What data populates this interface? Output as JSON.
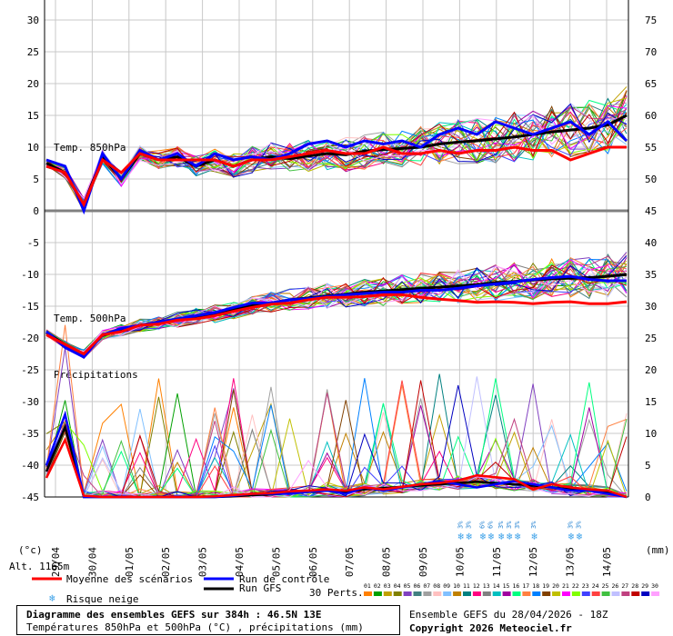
{
  "chart_data": {
    "type": "line",
    "title": "Diagramme des ensembles GEFS sur 384h : 46.5N 13E",
    "subtitle": "Températures 850hPa et 500hPa (°C) , précipitations (mm)",
    "left_axis_label": "(°c)",
    "right_axis_label": "(mm)",
    "left_ticks": [
      "30",
      "25",
      "20",
      "15",
      "10",
      "5",
      "0",
      "-5",
      "-10",
      "-15",
      "-20",
      "-25",
      "-30",
      "-35",
      "-40",
      "-45"
    ],
    "right_ticks": [
      "75",
      "70",
      "65",
      "60",
      "55",
      "50",
      "45",
      "40",
      "35",
      "30",
      "25",
      "20",
      "15",
      "10",
      "5",
      "0"
    ],
    "ylim_left": [
      -45,
      30
    ],
    "date_labels": [
      "29/04",
      "30/04",
      "01/05",
      "02/05",
      "03/05",
      "04/05",
      "05/05",
      "06/05",
      "07/05",
      "08/05",
      "09/05",
      "10/05",
      "11/05",
      "12/05",
      "13/05",
      "14/05"
    ],
    "annotations": {
      "t850": "Temp. 850hPa",
      "t500": "Temp. 500hPa",
      "precip": "Précipitations",
      "altitude": "Alt. 1165m"
    },
    "snow_risk": [
      {
        "date_index": 11.0,
        "values": [
          "3%",
          "3%"
        ]
      },
      {
        "date_index": 11.6,
        "values": [
          "6%",
          "6%"
        ]
      },
      {
        "date_index": 12.1,
        "values": [
          "3%",
          "3%",
          "3%"
        ]
      },
      {
        "date_index": 13.0,
        "values": [
          "3%"
        ]
      },
      {
        "date_index": 14.0,
        "values": [
          "3%",
          "3%"
        ]
      }
    ],
    "series": [
      {
        "name": "Moyenne des scénarios",
        "color": "#ff0000",
        "t850": [
          7,
          6,
          1,
          8,
          6,
          9,
          8,
          8,
          8,
          8,
          7,
          8,
          8,
          8.5,
          9,
          9.5,
          9,
          9,
          10,
          9,
          9,
          9.5,
          9,
          9.5,
          9.5,
          10,
          9.5,
          9.5,
          8,
          9,
          10,
          10
        ],
        "t500": [
          -19.5,
          -21,
          -22.5,
          -19.5,
          -19,
          -18,
          -17.8,
          -17.2,
          -17,
          -16.5,
          -15.8,
          -15.2,
          -14.7,
          -14.5,
          -14,
          -13.6,
          -13.6,
          -13.5,
          -13.2,
          -13.2,
          -13.6,
          -13.9,
          -14.1,
          -14.4,
          -14.3,
          -14.4,
          -14.6,
          -14.4,
          -14.3,
          -14.6,
          -14.6,
          -14.3
        ],
        "precip": [
          3,
          9,
          0.2,
          0,
          0,
          0,
          0,
          0,
          0,
          0.1,
          0.3,
          0.5,
          0.6,
          0.9,
          1,
          1.2,
          1,
          1.5,
          1.2,
          1.6,
          2,
          2.2,
          2.6,
          3.4,
          3.1,
          2.8,
          1.2,
          2,
          1.5,
          1.2,
          1,
          0
        ]
      },
      {
        "name": "Run de contrôle",
        "color": "#0000ff",
        "t850": [
          8,
          7,
          0,
          9,
          5,
          9.5,
          8,
          9,
          7,
          9,
          8,
          8.5,
          8,
          9,
          10.5,
          11,
          10,
          11,
          10.5,
          11,
          10,
          12,
          13,
          12,
          14,
          13,
          12,
          13,
          14,
          12,
          14,
          11
        ],
        "t500": [
          -19,
          -21.5,
          -23,
          -19.5,
          -18.5,
          -18,
          -17.5,
          -17,
          -16.5,
          -16,
          -15.2,
          -14.5,
          -14.5,
          -14,
          -13.8,
          -13.5,
          -13.2,
          -13,
          -12.8,
          -12.8,
          -12.5,
          -12.5,
          -12.2,
          -11.8,
          -11.5,
          -11.2,
          -10.8,
          -10.5,
          -10.3,
          -10.8,
          -11,
          -11
        ],
        "precip": [
          5,
          13,
          0,
          0,
          0,
          0,
          0,
          0,
          0,
          0,
          0.2,
          0.5,
          0.5,
          0.5,
          0.8,
          1,
          0.5,
          1.5,
          1,
          1.5,
          2,
          2.5,
          2,
          1.5,
          2,
          2.5,
          2,
          1.5,
          1,
          1,
          0.5,
          0
        ]
      },
      {
        "name": "Run GFS",
        "color": "#000000",
        "t850": [
          7.5,
          6,
          1,
          8.5,
          5,
          9,
          8,
          8.5,
          7,
          8,
          7,
          8,
          8.5,
          8.2,
          8.6,
          9,
          8.8,
          9.4,
          9.6,
          9.8,
          10,
          10.5,
          10.8,
          11,
          11.3,
          11.6,
          12,
          12.4,
          12.7,
          13,
          13.5,
          15
        ],
        "t500": [
          -19.2,
          -21,
          -22.5,
          -19.6,
          -18.8,
          -18,
          -17.6,
          -17.1,
          -16.6,
          -16.2,
          -15.5,
          -14.9,
          -14.5,
          -14,
          -13.7,
          -13.4,
          -13.1,
          -12.8,
          -12.6,
          -12.4,
          -12.2,
          -12,
          -11.8,
          -11.6,
          -11.3,
          -11.1,
          -10.9,
          -10.7,
          -10.6,
          -10.5,
          -10.3,
          -10
        ],
        "precip": [
          4,
          11,
          0,
          0,
          0,
          0,
          0,
          0,
          0,
          0,
          0.1,
          0.3,
          0.4,
          0.6,
          0.8,
          1,
          0.8,
          1.2,
          1.4,
          1.6,
          1.8,
          2,
          2.2,
          2.4,
          2.2,
          2,
          1.8,
          1.5,
          1.2,
          1,
          0.8,
          0
        ]
      }
    ],
    "members": {
      "label": "30 Perts.",
      "numbers": [
        "01",
        "02",
        "03",
        "04",
        "05",
        "06",
        "07",
        "08",
        "09",
        "10",
        "11",
        "12",
        "13",
        "14",
        "15",
        "16",
        "17",
        "18",
        "19",
        "20",
        "21",
        "22",
        "23",
        "24",
        "25",
        "26",
        "27",
        "28",
        "29",
        "30"
      ],
      "colors": [
        "#ff8000",
        "#00a000",
        "#c0a000",
        "#808000",
        "#8040c0",
        "#408080",
        "#a0a0a0",
        "#ffc0c0",
        "#80c0ff",
        "#c08000",
        "#008080",
        "#ff0080",
        "#808080",
        "#00c0c0",
        "#a000a0",
        "#00ff80",
        "#ff8040",
        "#0080ff",
        "#804000",
        "#c0c000",
        "#ff00ff",
        "#80ff00",
        "#4040ff",
        "#ff4040",
        "#40c040",
        "#c0c0ff",
        "#c04080",
        "#c00000",
        "#0000c0",
        "#ffa0ff"
      ]
    }
  },
  "legend": {
    "mean": "Moyenne des scénarios",
    "control": "Run de contrôle",
    "gfs": "Run GFS",
    "snow": "Risque neige",
    "perts": "30 Perts."
  },
  "footer": {
    "title": "Diagramme des ensembles GEFS sur 384h : 46.5N 13E",
    "subtitle": "Températures 850hPa et 500hPa (°C) , précipitations (mm)",
    "run": "Ensemble GEFS du 28/04/2026 - 18Z",
    "copyright": "Copyright 2026 Meteociel.fr"
  }
}
